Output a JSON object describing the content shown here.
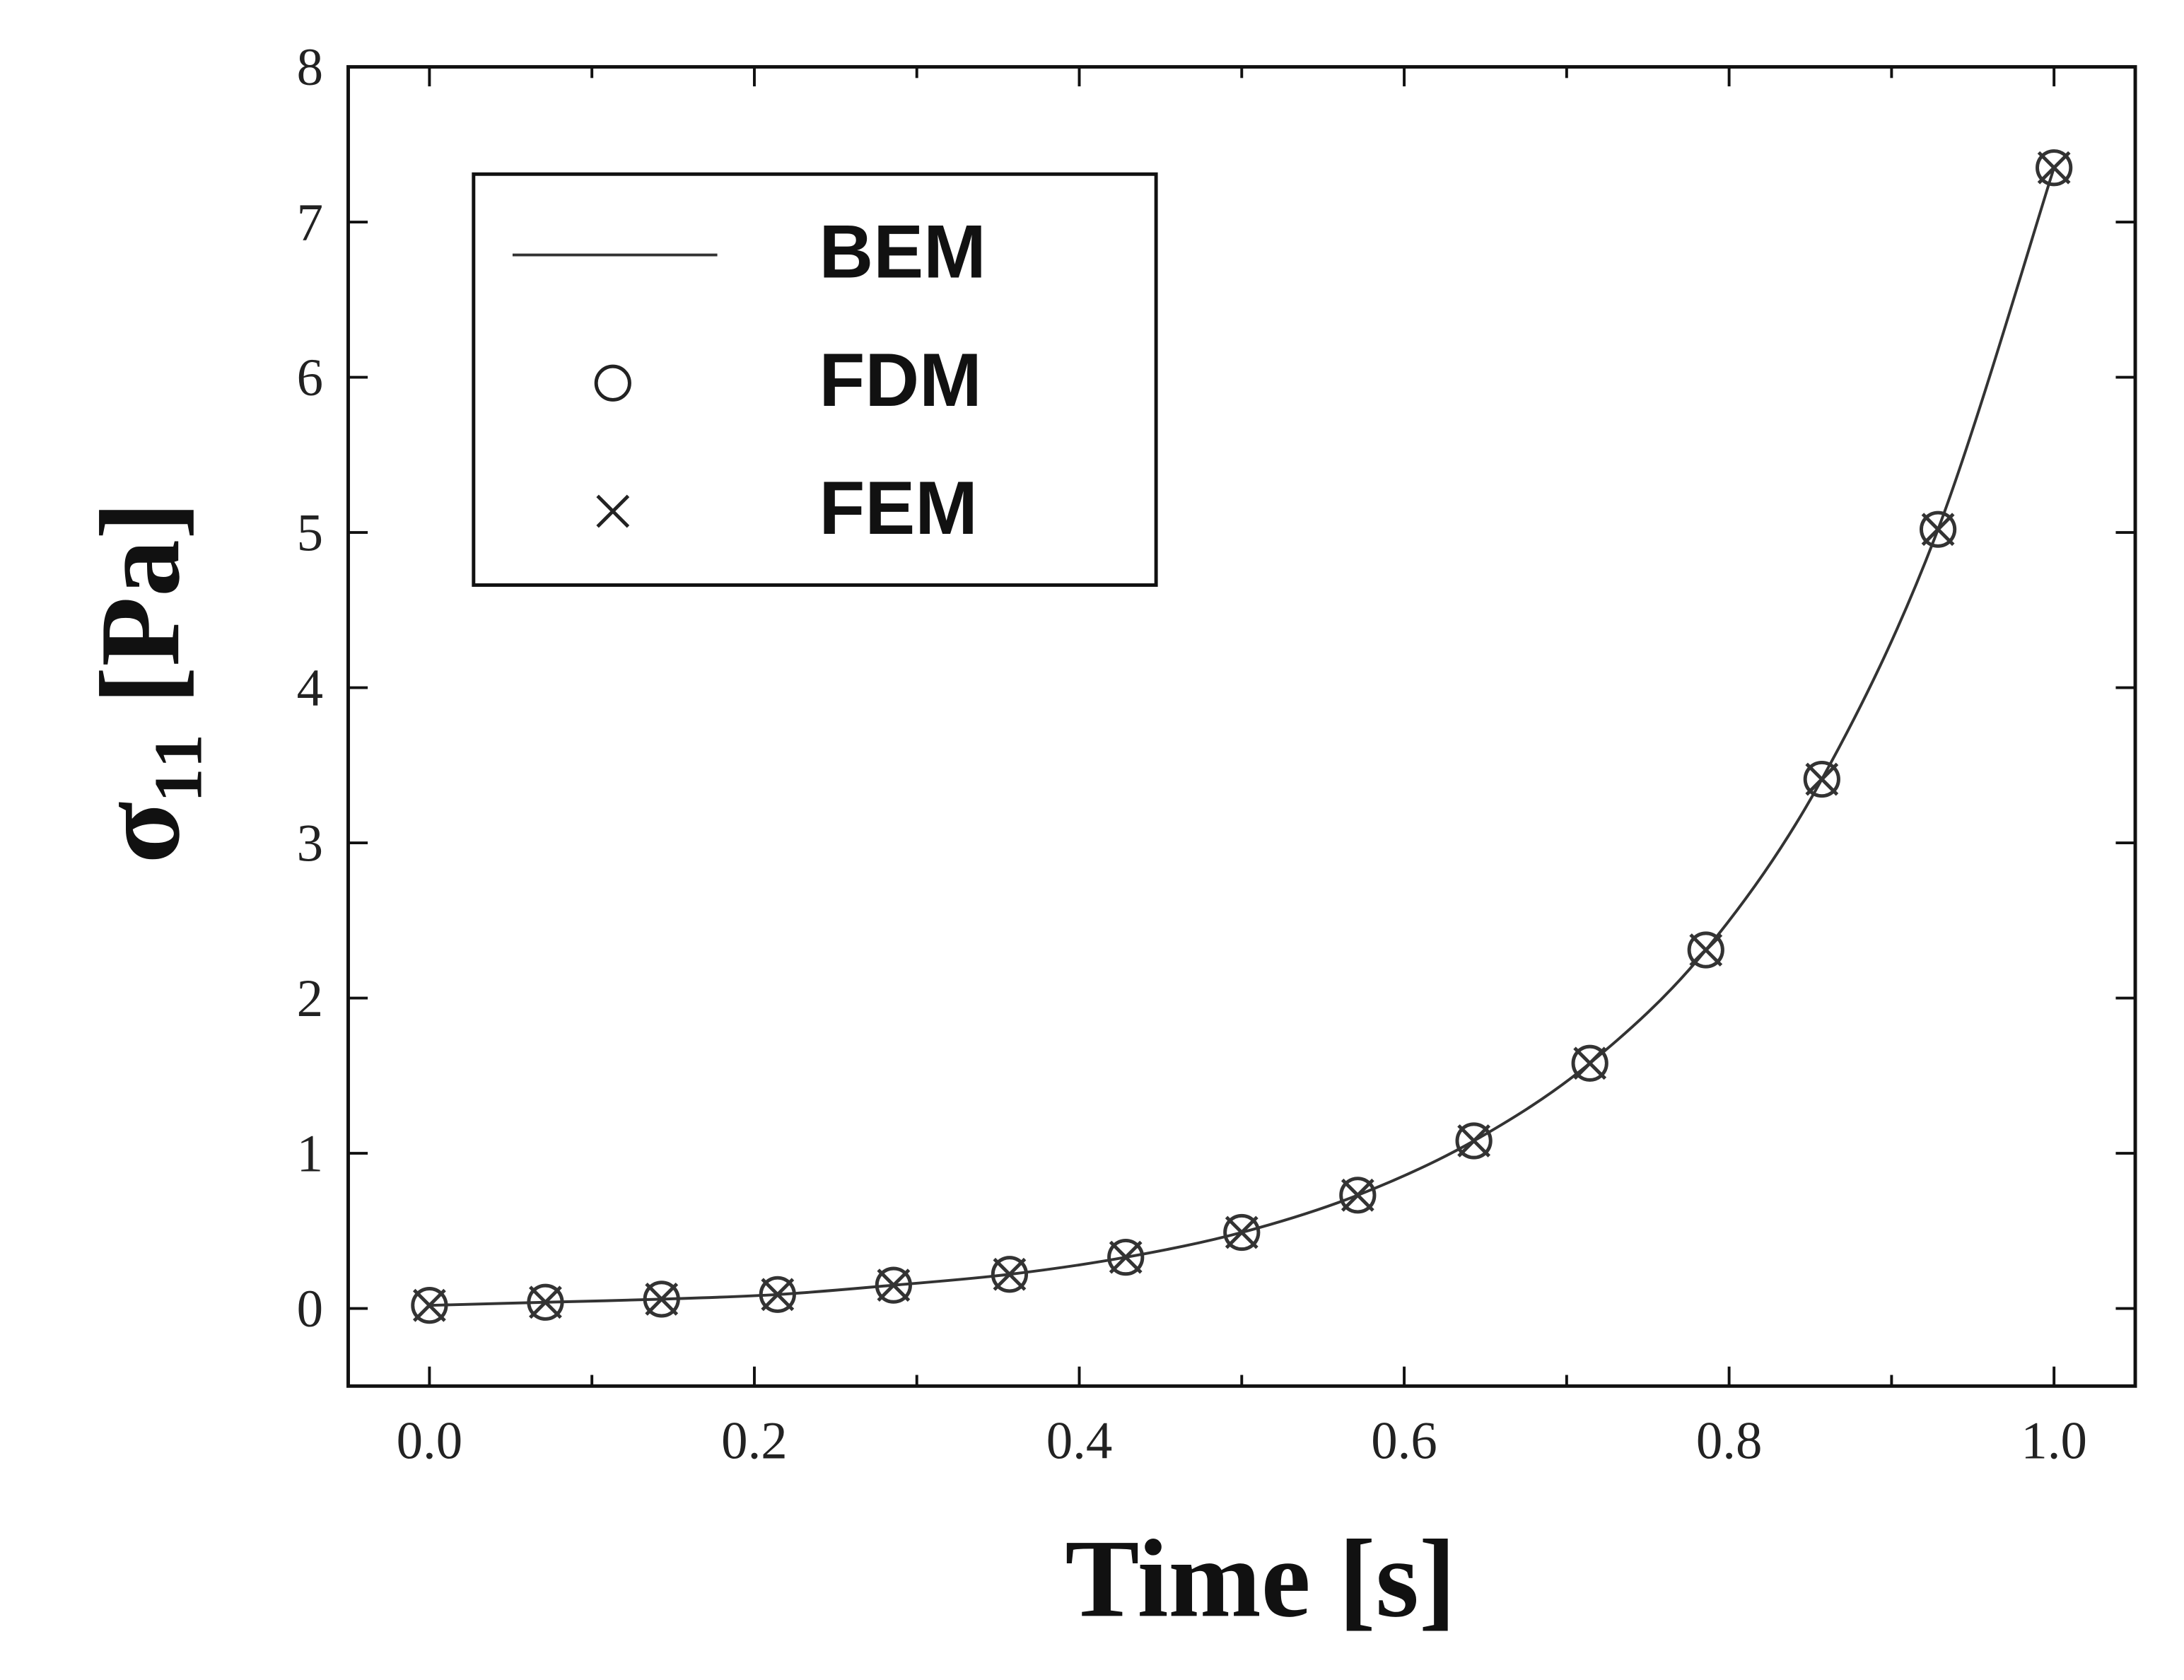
{
  "chart_data": {
    "type": "line",
    "xlabel": "Time [s]",
    "ylabel": "σ₁₁ [Pa]",
    "x": [
      0,
      0.0714,
      0.1429,
      0.2143,
      0.2857,
      0.3571,
      0.4286,
      0.5,
      0.5714,
      0.6429,
      0.7143,
      0.7857,
      0.8571,
      0.9286,
      1.0
    ],
    "series": [
      {
        "name": "BEM",
        "color": "#333333",
        "marker": "line",
        "values": [
          0.02,
          0.04,
          0.06,
          0.09,
          0.15,
          0.22,
          0.33,
          0.49,
          0.73,
          1.08,
          1.58,
          2.31,
          3.41,
          5.02,
          7.35
        ]
      },
      {
        "name": "FDM",
        "color": "#333333",
        "marker": "circle",
        "values": [
          0.02,
          0.04,
          0.06,
          0.09,
          0.15,
          0.22,
          0.33,
          0.49,
          0.73,
          1.08,
          1.58,
          2.31,
          3.41,
          5.02,
          7.35
        ]
      },
      {
        "name": "FEM",
        "color": "#333333",
        "marker": "cross",
        "values": [
          0.02,
          0.04,
          0.06,
          0.09,
          0.15,
          0.22,
          0.33,
          0.49,
          0.73,
          1.08,
          1.58,
          2.31,
          3.41,
          5.02,
          7.35
        ]
      }
    ],
    "xlim": [
      -0.05,
      1.05
    ],
    "ylim": [
      -0.5,
      8
    ],
    "xticks": [
      {
        "value": 0,
        "label": "0.0"
      },
      0.2,
      0.4,
      0.6,
      0.8,
      {
        "value": 1,
        "label": "1.0"
      }
    ],
    "yticks": [
      0,
      1,
      2,
      3,
      4,
      5,
      6,
      7,
      8
    ],
    "legend": "upper left"
  }
}
